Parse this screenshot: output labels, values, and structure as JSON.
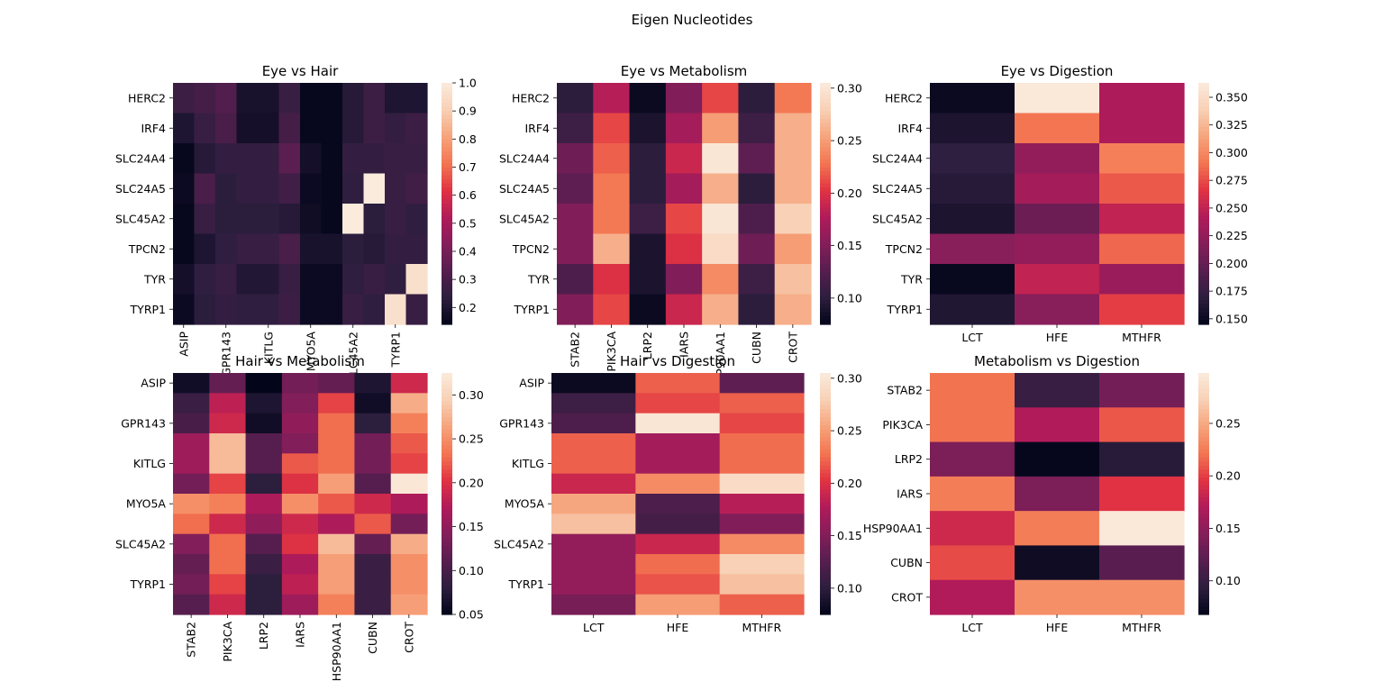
{
  "figure": {
    "suptitle": "Eigen Nucleotides"
  },
  "colormap": {
    "name": "rocket",
    "stops": [
      "#03051a",
      "#2d1e3e",
      "#571e4f",
      "#841e5a",
      "#b11b5a",
      "#e13342",
      "#f37651",
      "#f6a47c",
      "#f8d0b5",
      "#faebdd"
    ]
  },
  "chart_data": [
    {
      "type": "heatmap",
      "title": "Eye vs Hair",
      "rows": [
        "HERC2",
        "IRF4",
        "SLC24A4",
        "SLC24A5",
        "SLC45A2",
        "TPCN2",
        "TYR",
        "TYRP1"
      ],
      "cols": [
        "ASIP",
        "",
        "GPR143",
        "",
        "KITLG",
        "",
        "MYO5A",
        "",
        "SLC45A2",
        "",
        "TYRP1",
        ""
      ],
      "col_labels_shown": [
        "ASIP",
        "GPR143",
        "KITLG",
        "MYO5A",
        "SLC45A2",
        "TYRP1"
      ],
      "values": [
        [
          0.27,
          0.29,
          0.32,
          0.19,
          0.19,
          0.26,
          0.15,
          0.15,
          0.22,
          0.27,
          0.2,
          0.2
        ],
        [
          0.2,
          0.26,
          0.3,
          0.18,
          0.18,
          0.29,
          0.15,
          0.15,
          0.22,
          0.27,
          0.25,
          0.27
        ],
        [
          0.15,
          0.22,
          0.25,
          0.25,
          0.25,
          0.34,
          0.18,
          0.15,
          0.25,
          0.25,
          0.26,
          0.26
        ],
        [
          0.16,
          0.3,
          0.23,
          0.25,
          0.25,
          0.28,
          0.16,
          0.15,
          0.24,
          1.0,
          0.26,
          0.28
        ],
        [
          0.15,
          0.26,
          0.23,
          0.23,
          0.23,
          0.22,
          0.17,
          0.15,
          1.0,
          0.23,
          0.26,
          0.24
        ],
        [
          0.15,
          0.2,
          0.24,
          0.26,
          0.26,
          0.3,
          0.19,
          0.19,
          0.23,
          0.22,
          0.25,
          0.25
        ],
        [
          0.18,
          0.24,
          0.26,
          0.21,
          0.21,
          0.26,
          0.16,
          0.16,
          0.24,
          0.26,
          0.24,
          0.96
        ],
        [
          0.16,
          0.23,
          0.25,
          0.24,
          0.24,
          0.27,
          0.16,
          0.16,
          0.26,
          0.24,
          0.96,
          0.26
        ]
      ],
      "vmin": 0.14,
      "vmax": 1.0,
      "colorbar_ticks": [
        0.2,
        0.3,
        0.4,
        0.5,
        0.6,
        0.7,
        0.8,
        0.9,
        1.0
      ],
      "colorbar_labels": [
        "0.2",
        "0.3",
        "0.4",
        "0.5",
        "0.6",
        "0.7",
        "0.8",
        "0.9",
        "1.0"
      ],
      "xtick_rotation": 90
    },
    {
      "type": "heatmap",
      "title": "Eye vs Metabolism",
      "rows": [
        "HERC2",
        "IRF4",
        "SLC24A4",
        "SLC24A5",
        "SLC45A2",
        "TPCN2",
        "TYR",
        "TYRP1"
      ],
      "cols": [
        "STAB2",
        "PIK3CA",
        "LRP2",
        "IARS",
        "HSP90AA1",
        "CUBN",
        "CROT"
      ],
      "values": [
        [
          0.1,
          0.18,
          0.08,
          0.15,
          0.21,
          0.1,
          0.23
        ],
        [
          0.11,
          0.21,
          0.09,
          0.17,
          0.25,
          0.11,
          0.26
        ],
        [
          0.14,
          0.22,
          0.1,
          0.19,
          0.3,
          0.13,
          0.26
        ],
        [
          0.13,
          0.23,
          0.1,
          0.17,
          0.26,
          0.1,
          0.26
        ],
        [
          0.15,
          0.23,
          0.11,
          0.21,
          0.3,
          0.12,
          0.28
        ],
        [
          0.15,
          0.26,
          0.09,
          0.2,
          0.29,
          0.14,
          0.25
        ],
        [
          0.12,
          0.2,
          0.09,
          0.15,
          0.24,
          0.11,
          0.27
        ],
        [
          0.15,
          0.21,
          0.08,
          0.19,
          0.26,
          0.1,
          0.26
        ]
      ],
      "vmin": 0.075,
      "vmax": 0.305,
      "colorbar_ticks": [
        0.1,
        0.15,
        0.2,
        0.25,
        0.3
      ],
      "colorbar_labels": [
        "0.10",
        "0.15",
        "0.20",
        "0.25",
        "0.30"
      ],
      "xtick_rotation": 90
    },
    {
      "type": "heatmap",
      "title": "Eye vs Digestion",
      "rows": [
        "HERC2",
        "IRF4",
        "SLC24A4",
        "SLC24A5",
        "SLC45A2",
        "TPCN2",
        "TYR",
        "TYRP1"
      ],
      "cols": [
        "LCT",
        "HFE",
        "MTHFR"
      ],
      "values": [
        [
          0.15,
          0.36,
          0.24
        ],
        [
          0.16,
          0.29,
          0.24
        ],
        [
          0.17,
          0.225,
          0.295
        ],
        [
          0.165,
          0.235,
          0.28
        ],
        [
          0.16,
          0.205,
          0.25
        ],
        [
          0.22,
          0.225,
          0.285
        ],
        [
          0.148,
          0.25,
          0.23
        ],
        [
          0.162,
          0.22,
          0.27
        ]
      ],
      "vmin": 0.145,
      "vmax": 0.363,
      "colorbar_ticks": [
        0.15,
        0.175,
        0.2,
        0.225,
        0.25,
        0.275,
        0.3,
        0.325,
        0.35
      ],
      "colorbar_labels": [
        "0.150",
        "0.175",
        "0.200",
        "0.225",
        "0.250",
        "0.275",
        "0.300",
        "0.325",
        "0.350"
      ],
      "xtick_rotation": 0
    },
    {
      "type": "heatmap",
      "title": "Hair vs Metabolism",
      "rows": [
        "ASIP",
        "",
        "GPR143",
        "",
        "KITLG",
        "",
        "MYO5A",
        "",
        "SLC45A2",
        "",
        "TYRP1",
        ""
      ],
      "row_labels_shown": [
        "ASIP",
        "GPR143",
        "KITLG",
        "MYO5A",
        "SLC45A2",
        "TYRP1"
      ],
      "cols": [
        "STAB2",
        "PIK3CA",
        "LRP2",
        "IARS",
        "HSP90AA1",
        "CUBN",
        "CROT"
      ],
      "values": [
        [
          0.06,
          0.12,
          0.05,
          0.13,
          0.12,
          0.07,
          0.19
        ],
        [
          0.09,
          0.18,
          0.07,
          0.14,
          0.21,
          0.06,
          0.27
        ],
        [
          0.1,
          0.19,
          0.06,
          0.15,
          0.23,
          0.08,
          0.24
        ],
        [
          0.16,
          0.28,
          0.11,
          0.14,
          0.23,
          0.13,
          0.22
        ],
        [
          0.16,
          0.28,
          0.11,
          0.22,
          0.23,
          0.13,
          0.21
        ],
        [
          0.13,
          0.21,
          0.08,
          0.2,
          0.26,
          0.11,
          0.32
        ],
        [
          0.25,
          0.24,
          0.17,
          0.25,
          0.22,
          0.19,
          0.17
        ],
        [
          0.23,
          0.19,
          0.15,
          0.19,
          0.17,
          0.22,
          0.13
        ],
        [
          0.14,
          0.23,
          0.11,
          0.2,
          0.28,
          0.12,
          0.27
        ],
        [
          0.12,
          0.23,
          0.09,
          0.17,
          0.26,
          0.09,
          0.25
        ],
        [
          0.13,
          0.21,
          0.08,
          0.18,
          0.26,
          0.09,
          0.25
        ],
        [
          0.11,
          0.19,
          0.08,
          0.16,
          0.24,
          0.09,
          0.26
        ]
      ],
      "vmin": 0.05,
      "vmax": 0.325,
      "colorbar_ticks": [
        0.05,
        0.1,
        0.15,
        0.2,
        0.25,
        0.3
      ],
      "colorbar_labels": [
        "0.05",
        "0.10",
        "0.15",
        "0.20",
        "0.25",
        "0.30"
      ],
      "xtick_rotation": 90
    },
    {
      "type": "heatmap",
      "title": "Hair vs Digestion",
      "rows": [
        "ASIP",
        "",
        "GPR143",
        "",
        "KITLG",
        "",
        "MYO5A",
        "",
        "SLC45A2",
        "",
        "TYRP1",
        ""
      ],
      "row_labels_shown": [
        "ASIP",
        "GPR143",
        "KITLG",
        "MYO5A",
        "SLC45A2",
        "TYRP1"
      ],
      "cols": [
        "LCT",
        "HFE",
        "MTHFR"
      ],
      "values": [
        [
          0.08,
          0.22,
          0.13
        ],
        [
          0.11,
          0.21,
          0.22
        ],
        [
          0.12,
          0.3,
          0.21
        ],
        [
          0.22,
          0.17,
          0.225
        ],
        [
          0.22,
          0.17,
          0.225
        ],
        [
          0.19,
          0.24,
          0.29
        ],
        [
          0.255,
          0.12,
          0.18
        ],
        [
          0.27,
          0.115,
          0.15
        ],
        [
          0.16,
          0.19,
          0.24
        ],
        [
          0.16,
          0.225,
          0.28
        ],
        [
          0.16,
          0.215,
          0.27
        ],
        [
          0.145,
          0.25,
          0.22
        ]
      ],
      "vmin": 0.075,
      "vmax": 0.305,
      "colorbar_ticks": [
        0.1,
        0.15,
        0.2,
        0.25,
        0.3
      ],
      "colorbar_labels": [
        "0.10",
        "0.15",
        "0.20",
        "0.25",
        "0.30"
      ],
      "xtick_rotation": 0
    },
    {
      "type": "heatmap",
      "title": "Metabolism vs Digestion",
      "rows": [
        "STAB2",
        "PIK3CA",
        "LRP2",
        "IARS",
        "HSP90AA1",
        "CUBN",
        "CROT"
      ],
      "cols": [
        "LCT",
        "HFE",
        "MTHFR"
      ],
      "values": [
        [
          0.22,
          0.1,
          0.135
        ],
        [
          0.22,
          0.17,
          0.21
        ],
        [
          0.14,
          0.07,
          0.09
        ],
        [
          0.225,
          0.14,
          0.195
        ],
        [
          0.185,
          0.225,
          0.295
        ],
        [
          0.205,
          0.075,
          0.12
        ],
        [
          0.17,
          0.235,
          0.235
        ]
      ],
      "vmin": 0.068,
      "vmax": 0.298,
      "colorbar_ticks": [
        0.1,
        0.15,
        0.2,
        0.25
      ],
      "colorbar_labels": [
        "0.10",
        "0.15",
        "0.20",
        "0.25"
      ],
      "xtick_rotation": 0
    }
  ]
}
